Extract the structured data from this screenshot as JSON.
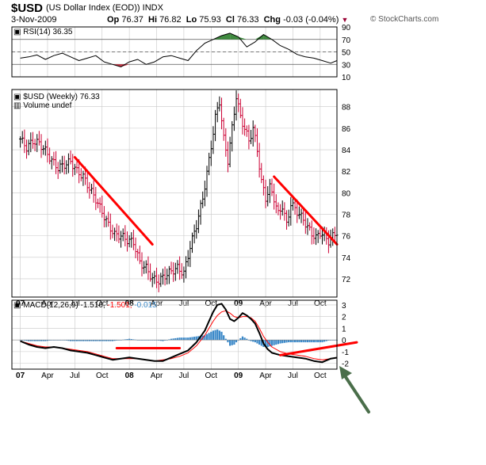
{
  "header": {
    "symbol": "$USD",
    "name": "(US Dollar Index (EOD))",
    "exchange": "INDX",
    "date": "3-Nov-2009",
    "open_label": "Op",
    "open": "76.37",
    "high_label": "Hi",
    "high": "76.82",
    "low_label": "Lo",
    "low": "75.93",
    "close_label": "Cl",
    "close": "76.33",
    "change_label": "Chg",
    "change": "-0.03 (-0.04%)",
    "credit": "© StockCharts.com"
  },
  "colors": {
    "up_bar": "#000000",
    "down_bar": "#cc0033",
    "trendline": "#ff0000",
    "macd_line": "#000000",
    "signal_line": "#ff0000",
    "histogram": "#3a88c8",
    "arrow": "#4a6e4a",
    "grid": "#c8c8c8"
  },
  "chart_data": [
    {
      "type": "line",
      "panel": "RSI",
      "title": "RSI(14) 36.35",
      "ylim": [
        10,
        90
      ],
      "yticks": [
        "90",
        "70",
        "50",
        "30",
        "10"
      ],
      "reference_lines": [
        70,
        50,
        30
      ],
      "series": [
        {
          "name": "RSI(14)",
          "x": [
            0,
            4,
            8,
            12,
            16,
            20,
            24,
            28,
            32,
            36,
            40,
            44,
            48,
            52,
            56,
            60,
            64,
            68,
            72,
            76,
            80,
            84,
            88,
            92,
            96,
            100,
            104,
            108,
            112,
            116,
            120,
            124,
            128,
            132,
            136,
            140,
            144,
            148,
            151
          ],
          "values": [
            40,
            42,
            45,
            38,
            44,
            48,
            42,
            36,
            40,
            44,
            34,
            30,
            26,
            34,
            38,
            30,
            34,
            42,
            44,
            40,
            36,
            52,
            64,
            70,
            76,
            80,
            74,
            58,
            66,
            78,
            70,
            60,
            54,
            46,
            42,
            40,
            36,
            32,
            36
          ]
        }
      ]
    },
    {
      "type": "bar",
      "panel": "price",
      "title": "$USD (Weekly) 76.33",
      "subtitle": "Volume undef",
      "ylim": [
        70.3,
        89.6
      ],
      "yticks": [
        "88",
        "86",
        "84",
        "82",
        "80",
        "78",
        "76",
        "74",
        "72"
      ],
      "x_tick_labels": [
        "07",
        "Apr",
        "Jul",
        "Oct",
        "08",
        "Apr",
        "Jul",
        "Oct",
        "09",
        "Apr",
        "Jul",
        "Oct"
      ],
      "x_tick_weeks": [
        0,
        13,
        26,
        39,
        52,
        65,
        78,
        91,
        104,
        117,
        130,
        143
      ],
      "close_series": {
        "weeks": [
          0,
          3,
          6,
          9,
          12,
          15,
          18,
          21,
          24,
          27,
          30,
          33,
          36,
          39,
          42,
          45,
          48,
          51,
          54,
          57,
          60,
          63,
          66,
          69,
          72,
          75,
          78,
          81,
          84,
          87,
          90,
          93,
          95,
          97,
          99,
          101,
          103,
          105,
          107,
          109,
          111,
          113,
          115,
          117,
          119,
          121,
          123,
          125,
          127,
          129,
          131,
          133,
          135,
          137,
          139,
          141,
          143,
          145,
          147,
          150,
          151
        ],
        "closes": [
          85.0,
          84.2,
          84.8,
          84.6,
          83.9,
          83.0,
          82.3,
          82.6,
          82.9,
          82.0,
          81.5,
          80.4,
          79.4,
          78.2,
          77.0,
          76.1,
          76.0,
          75.6,
          75.4,
          73.5,
          73.0,
          72.0,
          71.8,
          72.3,
          72.7,
          73.0,
          72.5,
          75.0,
          77.0,
          79.5,
          83.0,
          87.0,
          88.5,
          85.0,
          83.0,
          86.0,
          89.0,
          87.0,
          86.0,
          84.8,
          86.0,
          84.0,
          81.0,
          79.5,
          80.5,
          79.5,
          78.0,
          78.8,
          77.0,
          79.0,
          78.5,
          78.0,
          77.5,
          76.8,
          76.2,
          75.8,
          76.3,
          76.0,
          75.5,
          76.2,
          76.33
        ]
      },
      "trendlines": [
        {
          "from": [
            26,
            83.3
          ],
          "to": [
            63,
            75.2
          ]
        },
        {
          "from": [
            121,
            81.5
          ],
          "to": [
            151,
            75.2
          ]
        }
      ]
    },
    {
      "type": "line",
      "panel": "MACD",
      "title": "MACD(12,26,9)",
      "legend": [
        {
          "text": "MACD(12,26,9)",
          "color": "#000000"
        },
        {
          "text": "-1.516,",
          "color": "#000000"
        },
        {
          "text": "-1.501,",
          "color": "#ff0000"
        },
        {
          "text": "-0.015",
          "color": "#3a88c8"
        }
      ],
      "ylim": [
        -2.5,
        3.4
      ],
      "yticks": [
        "3",
        "2",
        "1",
        "0",
        "-1",
        "-2"
      ],
      "x": [
        0,
        4,
        8,
        12,
        16,
        20,
        24,
        28,
        32,
        36,
        40,
        44,
        48,
        52,
        56,
        60,
        64,
        68,
        72,
        76,
        80,
        84,
        88,
        90,
        92,
        94,
        96,
        98,
        100,
        102,
        104,
        106,
        108,
        110,
        112,
        114,
        116,
        118,
        120,
        124,
        128,
        132,
        136,
        140,
        144,
        148,
        151
      ],
      "series": [
        {
          "name": "MACD",
          "values": [
            -0.1,
            -0.4,
            -0.6,
            -0.7,
            -0.6,
            -0.7,
            -0.9,
            -1.0,
            -1.1,
            -1.3,
            -1.5,
            -1.7,
            -1.6,
            -1.5,
            -1.6,
            -1.7,
            -1.8,
            -1.8,
            -1.5,
            -1.2,
            -0.9,
            -0.2,
            0.8,
            1.6,
            2.4,
            3.0,
            3.1,
            2.6,
            1.8,
            1.6,
            1.9,
            2.3,
            2.1,
            1.8,
            1.4,
            0.6,
            -0.3,
            -0.8,
            -1.1,
            -1.3,
            -1.4,
            -1.5,
            -1.6,
            -1.8,
            -1.9,
            -1.6,
            -1.516
          ]
        },
        {
          "name": "Signal",
          "values": [
            -0.1,
            -0.3,
            -0.5,
            -0.6,
            -0.6,
            -0.7,
            -0.8,
            -0.9,
            -1.0,
            -1.2,
            -1.4,
            -1.6,
            -1.6,
            -1.6,
            -1.6,
            -1.7,
            -1.8,
            -1.7,
            -1.6,
            -1.4,
            -1.1,
            -0.5,
            0.4,
            1.0,
            1.6,
            2.1,
            2.4,
            2.5,
            2.3,
            2.0,
            1.9,
            2.0,
            2.0,
            1.9,
            1.6,
            1.0,
            0.3,
            -0.2,
            -0.6,
            -1.0,
            -1.2,
            -1.3,
            -1.4,
            -1.6,
            -1.7,
            -1.6,
            -1.501
          ]
        },
        {
          "name": "Histogram",
          "values": [
            0.0,
            -0.1,
            -0.1,
            -0.1,
            0.0,
            0.0,
            -0.1,
            -0.1,
            -0.1,
            -0.1,
            -0.1,
            -0.1,
            0.0,
            0.1,
            0.0,
            0.0,
            0.0,
            -0.1,
            0.1,
            0.2,
            0.2,
            0.3,
            0.4,
            0.6,
            0.8,
            0.9,
            0.7,
            0.1,
            -0.5,
            -0.4,
            0.0,
            0.3,
            0.1,
            -0.1,
            -0.2,
            -0.4,
            -0.6,
            -0.6,
            -0.5,
            -0.3,
            -0.2,
            -0.2,
            -0.2,
            -0.2,
            -0.2,
            0.0,
            -0.015
          ]
        }
      ],
      "trendlines": [
        {
          "from": [
            46,
            -0.7
          ],
          "to": [
            76,
            -0.7
          ]
        },
        {
          "from": [
            124,
            -1.3
          ],
          "to": [
            165,
            -0.2
          ]
        }
      ],
      "x_tick_labels": [
        "07",
        "Apr",
        "Jul",
        "Oct",
        "08",
        "Apr",
        "Jul",
        "Oct",
        "09",
        "Apr",
        "Jul",
        "Oct"
      ]
    }
  ]
}
